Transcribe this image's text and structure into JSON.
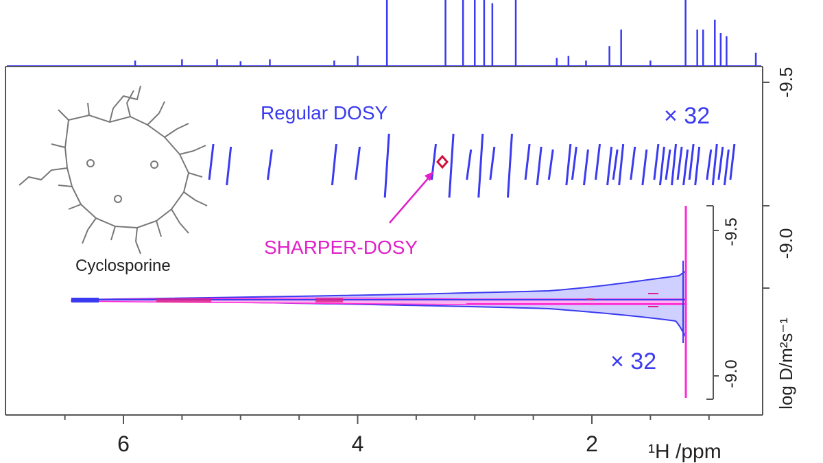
{
  "chart_data": {
    "type": "2D NMR DOSY spectrum",
    "x_axis": {
      "label": "¹H /ppm",
      "ticks": [
        6,
        4,
        2
      ],
      "range_ppm": [
        7.0,
        0.0
      ],
      "reversed": true
    },
    "y_axis_outer": {
      "label": "log D/m²s⁻¹",
      "ticks": [
        "-9.5",
        "-9.0",
        "-9.5"
      ]
    },
    "y_axis_inset": {
      "ticks": [
        "-9.5",
        "-9.0"
      ]
    },
    "annotations": {
      "regular_label": "Regular DOSY",
      "sharper_label": "SHARPER-DOSY",
      "scale_top": "× 32",
      "scale_bottom": "× 32",
      "compound": "Cyclosporine"
    },
    "regular_dosy_peaks_ppm": [
      5.25,
      5.1,
      4.75,
      4.2,
      4.0,
      3.75,
      3.35,
      3.2,
      3.05,
      2.95,
      2.85,
      2.7,
      2.55,
      2.45,
      2.35,
      2.2,
      2.15,
      2.05,
      1.95,
      1.85,
      1.8,
      1.75,
      1.65,
      1.55,
      1.45,
      1.4,
      1.35,
      1.3,
      1.25,
      1.2,
      1.15,
      1.1,
      1.0,
      0.95,
      0.9,
      0.85,
      0.8
    ],
    "sharper_dosy_peak_ppm": 3.3,
    "projection_peaks": [
      {
        "ppm": 3.75,
        "h": 1.0
      },
      {
        "ppm": 3.25,
        "h": 1.0
      },
      {
        "ppm": 3.1,
        "h": 1.0
      },
      {
        "ppm": 3.0,
        "h": 1.0
      },
      {
        "ppm": 2.92,
        "h": 1.0
      },
      {
        "ppm": 2.85,
        "h": 0.95
      },
      {
        "ppm": 2.65,
        "h": 1.0
      },
      {
        "ppm": 1.75,
        "h": 0.55
      },
      {
        "ppm": 1.85,
        "h": 0.3
      },
      {
        "ppm": 1.2,
        "h": 1.0
      },
      {
        "ppm": 1.1,
        "h": 0.55
      },
      {
        "ppm": 1.05,
        "h": 0.55
      },
      {
        "ppm": 0.95,
        "h": 0.7
      },
      {
        "ppm": 0.9,
        "h": 0.5
      },
      {
        "ppm": 0.85,
        "h": 0.45
      },
      {
        "ppm": 0.6,
        "h": 0.2
      },
      {
        "ppm": 4.0,
        "h": 0.15
      },
      {
        "ppm": 4.2,
        "h": 0.08
      },
      {
        "ppm": 5.9,
        "h": 0.08
      },
      {
        "ppm": 5.5,
        "h": 0.1
      },
      {
        "ppm": 5.2,
        "h": 0.1
      },
      {
        "ppm": 4.75,
        "h": 0.1
      },
      {
        "ppm": 5.0,
        "h": 0.07
      },
      {
        "ppm": 2.3,
        "h": 0.12
      },
      {
        "ppm": 2.2,
        "h": 0.15
      },
      {
        "ppm": 2.05,
        "h": 0.08
      },
      {
        "ppm": 1.5,
        "h": 0.08
      }
    ],
    "colors": {
      "regular": "#3a3af0",
      "sharper": "#ff2ad6",
      "sharper_marker": "#d0103a",
      "axis": "#333333",
      "molecule": "#777777"
    }
  }
}
